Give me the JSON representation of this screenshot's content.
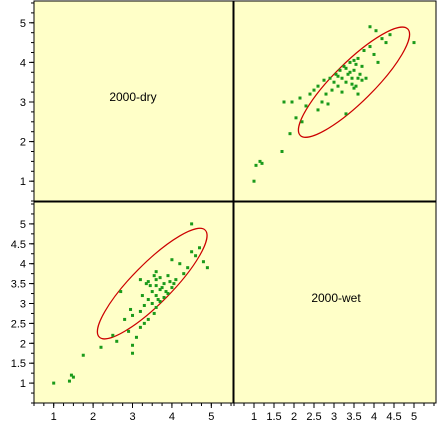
{
  "chart_data": {
    "type": "scatter",
    "subtype": "scatterplot-matrix",
    "variables": [
      "2000-dry",
      "2000-wet"
    ],
    "background_color": "#ffffc8",
    "point_color": "#1a9a1a",
    "ellipse_color": "#cc0000",
    "axis_ranges": {
      "2000-dry": [
        0.5,
        5.55
      ],
      "2000-wet": [
        0.5,
        5.55
      ]
    },
    "ticks": {
      "right_x": [
        1,
        1.5,
        2,
        2.5,
        3,
        3.5,
        4,
        4.5,
        5
      ],
      "right_x_labels": [
        "1",
        "1.5",
        "2",
        "2.5",
        "3",
        "3.5",
        "4",
        "4.5",
        "5"
      ],
      "top_y": [
        1,
        2,
        3,
        4,
        5
      ],
      "top_y_labels": [
        "1",
        "2",
        "3",
        "4",
        "5"
      ],
      "left_x": [
        1,
        2,
        3,
        4,
        5
      ],
      "left_x_labels": [
        "1",
        "2",
        "3",
        "4",
        "5"
      ],
      "bottom_y": [
        1,
        1.5,
        2,
        2.5,
        3,
        3.5,
        4,
        4.5,
        5
      ],
      "bottom_y_labels": [
        "1",
        "1.5",
        "2",
        "2.5",
        "3",
        "3.5",
        "4",
        "4.5",
        "5"
      ]
    },
    "ellipse": {
      "center": [
        3.5,
        3.5
      ],
      "semi_axes_along_diagonal": [
        1.9,
        0.5
      ]
    },
    "points_wet_vs_dry": [
      [
        1.0,
        1.0
      ],
      [
        1.05,
        1.4
      ],
      [
        1.15,
        1.5
      ],
      [
        1.2,
        1.45
      ],
      [
        1.7,
        1.75
      ],
      [
        1.9,
        2.2
      ],
      [
        1.75,
        3.0
      ],
      [
        1.95,
        3.0
      ],
      [
        2.05,
        2.6
      ],
      [
        2.15,
        3.1
      ],
      [
        2.2,
        2.5
      ],
      [
        2.3,
        2.9
      ],
      [
        2.4,
        3.2
      ],
      [
        2.5,
        3.3
      ],
      [
        2.6,
        3.4
      ],
      [
        2.7,
        3.0
      ],
      [
        2.75,
        3.55
      ],
      [
        2.8,
        3.2
      ],
      [
        2.9,
        3.6
      ],
      [
        2.95,
        3.3
      ],
      [
        3.0,
        3.5
      ],
      [
        3.05,
        3.7
      ],
      [
        3.1,
        3.4
      ],
      [
        3.15,
        3.8
      ],
      [
        3.2,
        3.6
      ],
      [
        3.25,
        3.9
      ],
      [
        3.3,
        3.5
      ],
      [
        3.35,
        3.7
      ],
      [
        3.4,
        4.0
      ],
      [
        3.45,
        3.6
      ],
      [
        3.5,
        3.8
      ],
      [
        3.55,
        3.4
      ],
      [
        3.6,
        4.1
      ],
      [
        3.65,
        3.7
      ],
      [
        3.7,
        3.9
      ],
      [
        3.75,
        4.3
      ],
      [
        3.8,
        3.6
      ],
      [
        3.9,
        4.4
      ],
      [
        4.0,
        4.2
      ],
      [
        4.1,
        4.0
      ],
      [
        4.2,
        4.6
      ],
      [
        4.3,
        4.5
      ],
      [
        4.4,
        4.7
      ],
      [
        5.0,
        4.5
      ],
      [
        3.3,
        2.7
      ],
      [
        3.6,
        3.2
      ],
      [
        2.6,
        2.8
      ],
      [
        3.9,
        4.9
      ],
      [
        3.5,
        3.35
      ],
      [
        3.4,
        3.75
      ],
      [
        3.55,
        3.95
      ],
      [
        3.2,
        3.25
      ],
      [
        3.7,
        3.55
      ],
      [
        3.1,
        3.65
      ],
      [
        2.85,
        2.95
      ],
      [
        4.05,
        4.8
      ],
      [
        3.45,
        3.45
      ],
      [
        3.6,
        3.6
      ],
      [
        3.3,
        3.85
      ],
      [
        3.5,
        4.05
      ]
    ],
    "points_dry_vs_wet": [
      [
        1.0,
        1.0
      ],
      [
        1.4,
        1.05
      ],
      [
        1.5,
        1.15
      ],
      [
        1.45,
        1.2
      ],
      [
        1.75,
        1.7
      ],
      [
        2.2,
        1.9
      ],
      [
        3.0,
        1.75
      ],
      [
        3.0,
        1.95
      ],
      [
        2.6,
        2.05
      ],
      [
        3.1,
        2.15
      ],
      [
        2.5,
        2.2
      ],
      [
        2.9,
        2.3
      ],
      [
        3.2,
        2.4
      ],
      [
        3.3,
        2.5
      ],
      [
        3.4,
        2.6
      ],
      [
        3.0,
        2.7
      ],
      [
        3.55,
        2.75
      ],
      [
        3.2,
        2.8
      ],
      [
        3.6,
        2.9
      ],
      [
        3.3,
        2.95
      ],
      [
        3.5,
        3.0
      ],
      [
        3.7,
        3.05
      ],
      [
        3.4,
        3.1
      ],
      [
        3.8,
        3.15
      ],
      [
        3.6,
        3.2
      ],
      [
        3.9,
        3.25
      ],
      [
        3.5,
        3.3
      ],
      [
        3.7,
        3.35
      ],
      [
        4.0,
        3.4
      ],
      [
        3.6,
        3.45
      ],
      [
        3.8,
        3.5
      ],
      [
        3.4,
        3.55
      ],
      [
        4.1,
        3.6
      ],
      [
        3.7,
        3.65
      ],
      [
        3.9,
        3.7
      ],
      [
        4.3,
        3.75
      ],
      [
        3.6,
        3.8
      ],
      [
        4.4,
        3.9
      ],
      [
        4.2,
        4.0
      ],
      [
        4.0,
        4.1
      ],
      [
        4.6,
        4.2
      ],
      [
        4.5,
        4.3
      ],
      [
        4.7,
        4.4
      ],
      [
        4.5,
        5.0
      ],
      [
        2.7,
        3.3
      ],
      [
        3.2,
        3.6
      ],
      [
        2.8,
        2.6
      ],
      [
        4.9,
        3.9
      ],
      [
        3.35,
        3.5
      ],
      [
        3.75,
        3.4
      ],
      [
        3.95,
        3.55
      ],
      [
        3.25,
        3.2
      ],
      [
        3.55,
        3.7
      ],
      [
        3.65,
        3.1
      ],
      [
        2.95,
        2.85
      ],
      [
        4.8,
        4.05
      ],
      [
        3.45,
        3.45
      ],
      [
        3.6,
        3.6
      ],
      [
        3.85,
        3.3
      ],
      [
        4.05,
        3.5
      ]
    ]
  }
}
